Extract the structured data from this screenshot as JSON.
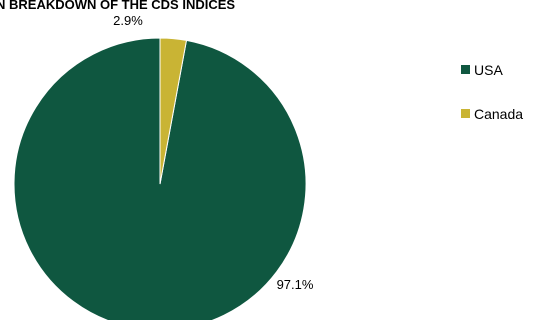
{
  "chart_data": {
    "type": "pie",
    "title": "N BREAKDOWN OF THE CDS INDICES",
    "slices": [
      {
        "label": "USA",
        "value": 97.1,
        "display": "97.1%",
        "color": "#0f5740"
      },
      {
        "label": "Canada",
        "value": 2.9,
        "display": "2.9%",
        "color": "#c9b434"
      }
    ],
    "legend": {
      "position": "right"
    },
    "start": "12 o'clock",
    "direction": "counterclockwise"
  }
}
